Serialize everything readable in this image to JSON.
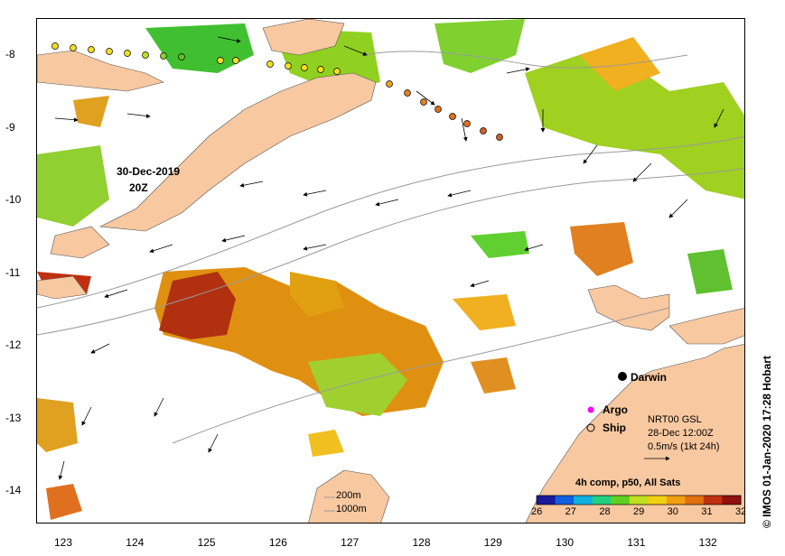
{
  "map": {
    "x_ticks": [
      "123",
      "124",
      "125",
      "126",
      "127",
      "128",
      "129",
      "130",
      "131",
      "132"
    ],
    "y_ticks": [
      "-8",
      "-9",
      "-10",
      "-11",
      "-12",
      "-13",
      "-14"
    ],
    "date_label_line1": "30-Dec-2019",
    "date_label_line2": "20Z",
    "darwin_label": "Darwin",
    "legend": {
      "argo_label": "Argo",
      "ship_label": "Ship",
      "argo_color": "#ff00ff"
    },
    "current_info": {
      "line1": "NRT00 GSL",
      "line2": "28-Dec 12:00Z",
      "line3": "0.5m/s (1kt 24h)"
    },
    "isobaths": {
      "label1": "200m",
      "label2": "1000m"
    },
    "colorbar": {
      "title": "4h comp, p50, All Sats",
      "ticks": [
        "26",
        "27",
        "28",
        "29",
        "30",
        "31",
        "32"
      ],
      "colors": [
        "#1a1a9a",
        "#1060e0",
        "#10b0e0",
        "#20d080",
        "#60d020",
        "#c0e020",
        "#f0d010",
        "#f0a010",
        "#e07010",
        "#c03010",
        "#901010"
      ]
    },
    "credit": "© IMOS 01-Jan-2020 17:28 Hobart",
    "land_color": "#f8c8a0"
  }
}
